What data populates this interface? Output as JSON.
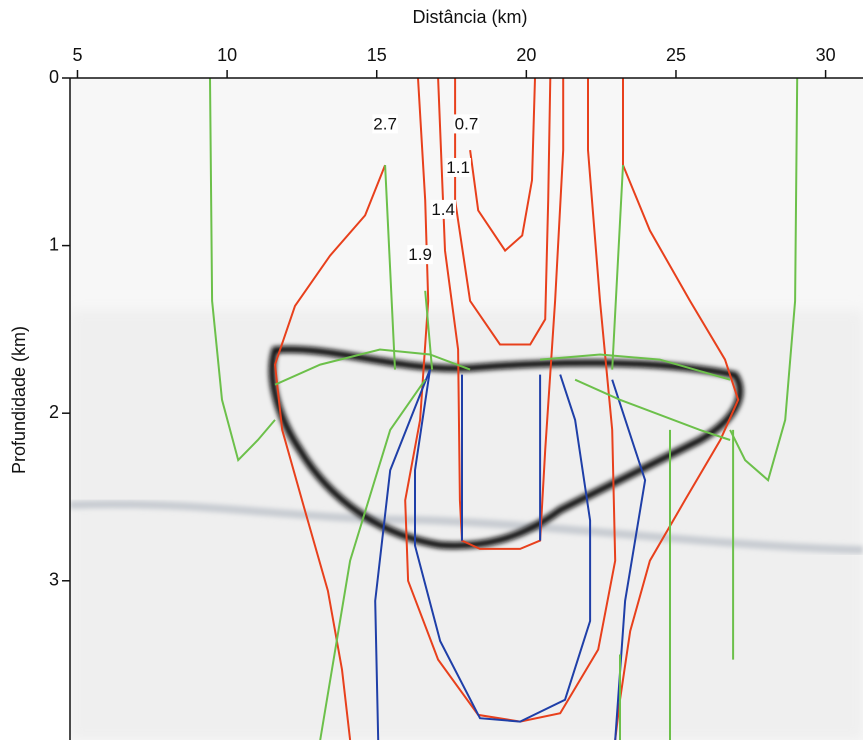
{
  "chart_data": {
    "type": "line",
    "x_label": "Distância (km)",
    "y_label": "Profundidade (km)",
    "x_axis_position": "top",
    "y_inverted": true,
    "xlim": [
      4.75,
      31.25
    ],
    "ylim": [
      0,
      3.95
    ],
    "xticks": [
      5,
      10,
      15,
      20,
      25,
      30
    ],
    "yticks": [
      0,
      1,
      2,
      3
    ],
    "series": [
      {
        "color": "#e8401c",
        "x": [
          15.28,
          14.61,
          13.44,
          12.27,
          11.6,
          11.84,
          12.6,
          13.37,
          13.84,
          14.11
        ],
        "values": [
          0.52,
          0.82,
          1.06,
          1.36,
          1.71,
          2.1,
          2.58,
          3.06,
          3.53,
          3.95
        ]
      },
      {
        "color": "#e8401c",
        "x": [
          23.23,
          23.23,
          24.13,
          25.47,
          26.64,
          27.08,
          26.48,
          25.3,
          24.13,
          23.47,
          23.13,
          22.97
        ],
        "values": [
          0,
          0.52,
          0.91,
          1.33,
          1.68,
          1.92,
          2.16,
          2.52,
          2.88,
          3.3,
          3.71,
          3.95
        ]
      },
      {
        "color": "#e8401c",
        "x": [
          16.38,
          16.62,
          16.72,
          16.45,
          15.95,
          16.05,
          17.05,
          18.39,
          19.79,
          21.13,
          22.4,
          22.97,
          22.87,
          22.46,
          22.06,
          22.06
        ],
        "values": [
          0,
          0.73,
          1.33,
          2.04,
          2.52,
          3.0,
          3.47,
          3.8,
          3.84,
          3.79,
          3.41,
          2.88,
          2.1,
          1.33,
          0.43,
          0
        ]
      },
      {
        "color": "#e8401c",
        "x": [
          17.05,
          17.28,
          17.72,
          17.78,
          17.85,
          18.45,
          19.79,
          20.46,
          20.63,
          20.96,
          21.23,
          21.23
        ],
        "values": [
          0,
          1.03,
          1.62,
          2.52,
          2.76,
          2.81,
          2.81,
          2.76,
          2.22,
          1.33,
          0.43,
          0
        ]
      },
      {
        "color": "#e8401c",
        "x": [
          17.62,
          17.62,
          18.12,
          19.12,
          20.13,
          20.63,
          20.73,
          20.8
        ],
        "values": [
          0,
          0.73,
          1.33,
          1.59,
          1.59,
          1.44,
          0.73,
          0
        ]
      },
      {
        "color": "#e8401c",
        "x": [
          18.12,
          18.39,
          19.29,
          19.86,
          20.19,
          20.29
        ],
        "values": [
          0.43,
          0.79,
          1.03,
          0.94,
          0.61,
          0
        ]
      },
      {
        "color": "#1f3fa8",
        "x": [
          16.78,
          15.45,
          14.95,
          15.05
        ],
        "values": [
          1.74,
          2.34,
          3.12,
          3.95
        ]
      },
      {
        "color": "#1f3fa8",
        "x": [
          22.87,
          23.97,
          23.3,
          22.97
        ],
        "values": [
          1.8,
          2.4,
          3.12,
          3.95
        ]
      },
      {
        "color": "#1f3fa8",
        "x": [
          16.78,
          16.28,
          16.28,
          17.12,
          18.45,
          19.79,
          21.29,
          22.13,
          22.13,
          21.63,
          21.13
        ],
        "values": [
          1.74,
          2.34,
          2.79,
          3.36,
          3.82,
          3.84,
          3.71,
          3.24,
          2.64,
          2.04,
          1.77
        ]
      },
      {
        "color": "#1f3fa8",
        "x": [
          17.85,
          17.85,
          null,
          20.46,
          20.46
        ],
        "values": [
          1.77,
          2.76,
          null,
          1.77,
          2.76
        ]
      },
      {
        "color": "#6cc04a",
        "x": [
          9.43,
          9.5,
          9.83,
          10.37,
          11.03,
          11.6
        ],
        "values": [
          0,
          1.33,
          1.92,
          2.28,
          2.16,
          2.04
        ]
      },
      {
        "color": "#6cc04a",
        "x": [
          29.05,
          28.98,
          28.65,
          28.08,
          27.31,
          26.81
        ],
        "values": [
          0,
          1.33,
          2.04,
          2.4,
          2.28,
          2.1
        ]
      },
      {
        "color": "#6cc04a",
        "x": [
          15.28,
          15.61,
          null,
          16.62,
          16.85
        ],
        "values": [
          0.52,
          1.74,
          null,
          1.27,
          1.74
        ]
      },
      {
        "color": "#6cc04a",
        "x": [
          11.6,
          13.11,
          15.11,
          16.78,
          18.12,
          null,
          20.46,
          22.46,
          24.46,
          26.81
        ],
        "values": [
          1.83,
          1.71,
          1.62,
          1.65,
          1.74,
          null,
          1.68,
          1.65,
          1.68,
          1.8
        ]
      },
      {
        "color": "#6cc04a",
        "x": [
          16.62,
          15.45,
          14.11,
          13.11,
          null,
          21.63,
          23.13,
          25.8,
          26.81
        ],
        "values": [
          1.8,
          2.1,
          2.88,
          3.95,
          null,
          1.8,
          1.92,
          2.1,
          2.16
        ]
      },
      {
        "color": "#6cc04a",
        "x": [
          23.23,
          22.87,
          null,
          24.8,
          24.8,
          null,
          26.91,
          26.91,
          null,
          23.13,
          23.13
        ],
        "values": [
          0.52,
          1.74,
          null,
          2.1,
          3.95,
          null,
          2.1,
          3.47,
          null,
          3.44,
          3.95
        ]
      }
    ],
    "annotations": [
      {
        "text": "2.7",
        "x": 15.28,
        "y": 0.28
      },
      {
        "text": "0.7",
        "x": 18.0,
        "y": 0.28
      },
      {
        "text": "1.1",
        "x": 17.72,
        "y": 0.54
      },
      {
        "text": "1.4",
        "x": 17.22,
        "y": 0.79
      },
      {
        "text": "1.9",
        "x": 16.45,
        "y": 1.06
      }
    ]
  }
}
